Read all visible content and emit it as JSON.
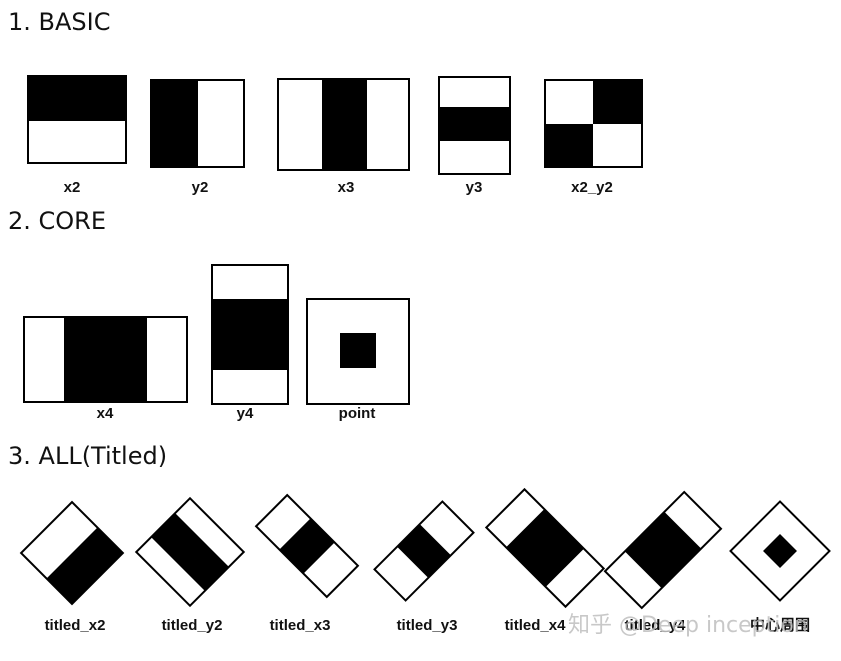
{
  "sections": [
    {
      "title": "1. BASIC",
      "items": [
        "x2",
        "y2",
        "x3",
        "y3",
        "x2_y2"
      ]
    },
    {
      "title": "2. CORE",
      "items": [
        "x4",
        "y4",
        "point"
      ]
    },
    {
      "title": "3. ALL(Titled)",
      "items": [
        "titled_x2",
        "titled_y2",
        "titled_x3",
        "titled_y3",
        "titled_x4",
        "titled_y4",
        "中心周围"
      ]
    }
  ],
  "watermark": "知乎 @Deep inception"
}
